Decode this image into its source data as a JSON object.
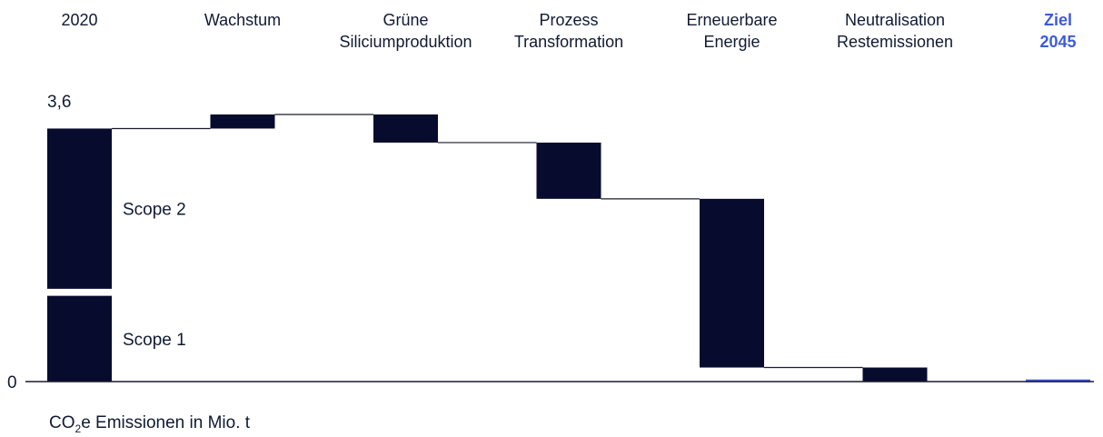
{
  "chart_data": {
    "type": "bar",
    "subtype": "waterfall",
    "categories": [
      [
        "2020"
      ],
      [
        "Wachstum"
      ],
      [
        "Grüne",
        "Siliciumproduktion"
      ],
      [
        "Prozess",
        "Transformation"
      ],
      [
        "Erneuerbare",
        "Energie"
      ],
      [
        "Neutralisation",
        "Restemissionen"
      ],
      [
        "Ziel",
        "2045"
      ]
    ],
    "steps": [
      {
        "start": 0,
        "end": 3.6,
        "segments": [
          {
            "name": "Scope 1",
            "from": 0,
            "to": 1.22
          },
          {
            "name": "Scope 2",
            "from": 1.32,
            "to": 3.6
          }
        ]
      },
      {
        "start": 3.6,
        "end": 3.8
      },
      {
        "start": 3.8,
        "end": 3.4
      },
      {
        "start": 3.4,
        "end": 2.6
      },
      {
        "start": 2.6,
        "end": 0.2
      },
      {
        "start": 0.2,
        "end": 0.0
      },
      {
        "start": 0.03,
        "end": 0.0
      }
    ],
    "highlight_index": 6,
    "value_label": "3,6",
    "y_tick_label": "0",
    "ylim": [
      0,
      3.8
    ],
    "unit_label": {
      "before": "CO",
      "sub": "2",
      "after": "e Emissionen in Mio. t"
    },
    "colors": {
      "bar": "#070b2e",
      "highlight": "#3d5bd9",
      "text": "#101a33",
      "axis": "#1a1a2e"
    }
  }
}
